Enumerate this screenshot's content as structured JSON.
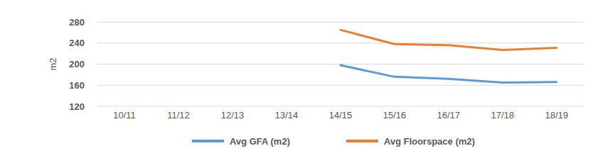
{
  "chart_data": {
    "type": "line",
    "y_label": "m2",
    "categories": [
      "10/11",
      "11/12",
      "12/13",
      "13/14",
      "14/15",
      "15/16",
      "16/17",
      "17/18",
      "18/19"
    ],
    "series": [
      {
        "name": "Avg GFA (m2)",
        "color": "#5b9bd5",
        "values": [
          null,
          null,
          null,
          null,
          198,
          176,
          172,
          165,
          166
        ]
      },
      {
        "name": "Avg Floorspace (m2)",
        "color": "#ed7d31",
        "values": [
          null,
          null,
          null,
          null,
          265,
          238,
          236,
          227,
          231
        ]
      }
    ],
    "ylim": [
      120,
      280
    ],
    "yticks": [
      120,
      160,
      200,
      240,
      280
    ],
    "grid": true,
    "legend": "bottom"
  }
}
